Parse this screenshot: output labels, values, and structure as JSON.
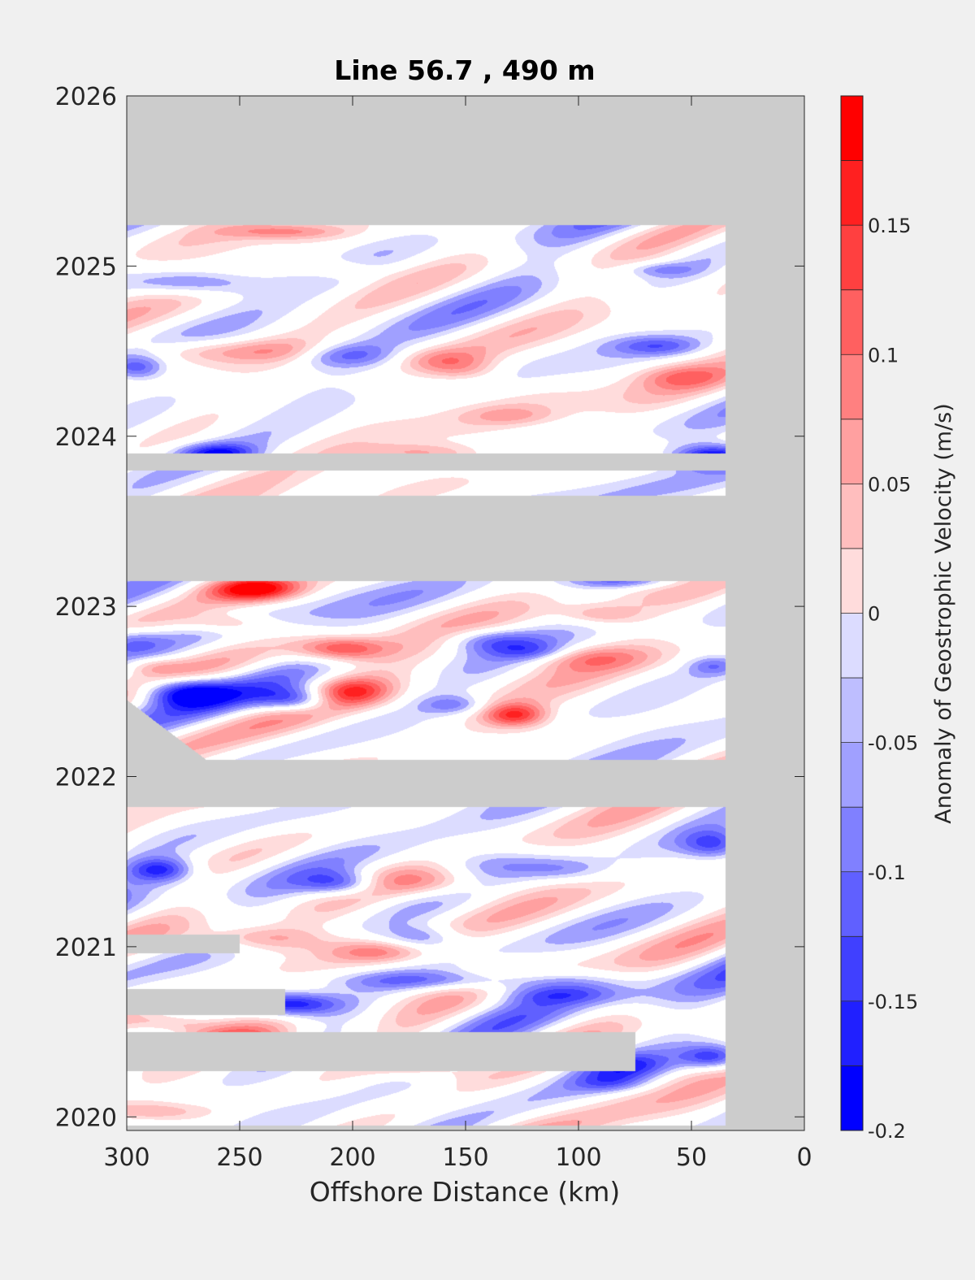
{
  "chart_data": {
    "type": "heatmap",
    "title": "Line 56.7 , 490 m",
    "xlabel": "Offshore Distance (km)",
    "ylabel": "",
    "xlim": [
      300,
      0
    ],
    "x_reversed": true,
    "ylim": [
      2019.92,
      2026
    ],
    "x_ticks": [
      "300",
      "250",
      "200",
      "150",
      "100",
      "50",
      "0"
    ],
    "x_tick_values": [
      300,
      250,
      200,
      150,
      100,
      50,
      0
    ],
    "y_ticks": [
      "2020",
      "2021",
      "2022",
      "2023",
      "2024",
      "2025",
      "2026"
    ],
    "y_tick_values": [
      2020,
      2021,
      2022,
      2023,
      2024,
      2025,
      2026
    ],
    "colorbar": {
      "label": "Anomaly of Geostrophic Velocity (m/s)",
      "ticks": [
        "-0.2",
        "-0.15",
        "-0.1",
        "-0.05",
        "0",
        "0.05",
        "0.1",
        "0.15"
      ],
      "tick_values": [
        -0.2,
        -0.15,
        -0.1,
        -0.05,
        0,
        0.05,
        0.1,
        0.15
      ],
      "range": [
        -0.2,
        0.2
      ],
      "levels": [
        -0.2,
        -0.175,
        -0.15,
        -0.125,
        -0.1,
        -0.075,
        -0.05,
        -0.025,
        0.025,
        0.05,
        0.075,
        0.1,
        0.125,
        0.15,
        0.175,
        0.2
      ],
      "colors": [
        "#0000ff",
        "#2020ff",
        "#4040ff",
        "#6060ff",
        "#8080ff",
        "#a0a0ff",
        "#bebeff",
        "#dcdcff",
        "#ffffff",
        "#ffdcdc",
        "#ffbebe",
        "#ffa0a0",
        "#ff8080",
        "#ff6060",
        "#ff4040",
        "#ff2020",
        "#ff0000"
      ]
    },
    "no_data_color": "#cccccc",
    "data_x_range": [
      35,
      300
    ],
    "data_time_ranges": [
      [
        2019.95,
        2021.82
      ],
      [
        2022.1,
        2023.15
      ],
      [
        2023.65,
        2023.8
      ],
      [
        2023.9,
        2025.24
      ]
    ],
    "gaps": [
      {
        "t0": 2020.27,
        "t1": 2020.5,
        "x_from": 300,
        "x_to": 75
      },
      {
        "t0": 2020.6,
        "t1": 2020.75,
        "x_from": 300,
        "x_to": 230
      },
      {
        "t0": 2020.96,
        "t1": 2021.07,
        "x_from": 300,
        "x_to": 250
      }
    ],
    "eddies": [
      {
        "x": 275,
        "t": 2022.5,
        "amp": -0.2,
        "sx": 14,
        "st": 0.06
      },
      {
        "x": 228,
        "t": 2020.66,
        "amp": -0.2,
        "sx": 16,
        "st": 0.05
      },
      {
        "x": 40,
        "t": 2023.88,
        "amp": -0.2,
        "sx": 12,
        "st": 0.05
      },
      {
        "x": 205,
        "t": 2022.75,
        "amp": 0.16,
        "sx": 14,
        "st": 0.05
      },
      {
        "x": 128,
        "t": 2022.36,
        "amp": 0.16,
        "sx": 10,
        "st": 0.05
      },
      {
        "x": 243,
        "t": 2023.1,
        "amp": 0.19,
        "sx": 14,
        "st": 0.05
      },
      {
        "x": 225,
        "t": 2022.45,
        "amp": -0.15,
        "sx": 12,
        "st": 0.05
      },
      {
        "x": 285,
        "t": 2021.45,
        "amp": -0.14,
        "sx": 10,
        "st": 0.05
      },
      {
        "x": 205,
        "t": 2021.37,
        "amp": -0.13,
        "sx": 12,
        "st": 0.05
      },
      {
        "x": 200,
        "t": 2022.5,
        "amp": 0.12,
        "sx": 12,
        "st": 0.06
      },
      {
        "x": 165,
        "t": 2021.37,
        "amp": 0.08,
        "sx": 18,
        "st": 0.06
      },
      {
        "x": 170,
        "t": 2020.3,
        "amp": 0.1,
        "sx": 16,
        "st": 0.05
      },
      {
        "x": 150,
        "t": 2020.8,
        "amp": -0.1,
        "sx": 40,
        "st": 0.04
      },
      {
        "x": 110,
        "t": 2020.72,
        "amp": -0.08,
        "sx": 22,
        "st": 0.04
      },
      {
        "x": 40,
        "t": 2020.35,
        "amp": -0.15,
        "sx": 10,
        "st": 0.05
      },
      {
        "x": 40,
        "t": 2021.6,
        "amp": -0.12,
        "sx": 10,
        "st": 0.06
      },
      {
        "x": 250,
        "t": 2020.45,
        "amp": 0.1,
        "sx": 20,
        "st": 0.05
      },
      {
        "x": 280,
        "t": 2020.55,
        "amp": 0.09,
        "sx": 14,
        "st": 0.04
      },
      {
        "x": 240,
        "t": 2021.05,
        "amp": 0.09,
        "sx": 20,
        "st": 0.05
      },
      {
        "x": 190,
        "t": 2020.97,
        "amp": 0.1,
        "sx": 16,
        "st": 0.05
      },
      {
        "x": 170,
        "t": 2021.05,
        "amp": -0.1,
        "sx": 12,
        "st": 0.05
      },
      {
        "x": 140,
        "t": 2020.35,
        "amp": -0.08,
        "sx": 10,
        "st": 0.05
      },
      {
        "x": 80,
        "t": 2020.3,
        "amp": -0.1,
        "sx": 14,
        "st": 0.05
      },
      {
        "x": 85,
        "t": 2020.2,
        "amp": -0.07,
        "sx": 12,
        "st": 0.04
      },
      {
        "x": 290,
        "t": 2020.03,
        "amp": 0.08,
        "sx": 18,
        "st": 0.04
      },
      {
        "x": 140,
        "t": 2021.5,
        "amp": -0.06,
        "sx": 20,
        "st": 0.06
      },
      {
        "x": 105,
        "t": 2021.45,
        "amp": -0.06,
        "sx": 14,
        "st": 0.05
      },
      {
        "x": 270,
        "t": 2024.9,
        "amp": -0.1,
        "sx": 22,
        "st": 0.05
      },
      {
        "x": 225,
        "t": 2024.5,
        "amp": 0.08,
        "sx": 20,
        "st": 0.05
      },
      {
        "x": 270,
        "t": 2024.5,
        "amp": 0.07,
        "sx": 20,
        "st": 0.05
      },
      {
        "x": 205,
        "t": 2024.48,
        "amp": -0.12,
        "sx": 16,
        "st": 0.05
      },
      {
        "x": 160,
        "t": 2024.45,
        "amp": 0.07,
        "sx": 14,
        "st": 0.05
      },
      {
        "x": 150,
        "t": 2024.38,
        "amp": 0.06,
        "sx": 12,
        "st": 0.05
      },
      {
        "x": 55,
        "t": 2024.35,
        "amp": 0.07,
        "sx": 14,
        "st": 0.05
      },
      {
        "x": 65,
        "t": 2024.53,
        "amp": -0.09,
        "sx": 14,
        "st": 0.04
      },
      {
        "x": 295,
        "t": 2024.4,
        "amp": -0.1,
        "sx": 8,
        "st": 0.05
      },
      {
        "x": 260,
        "t": 2023.9,
        "amp": -0.14,
        "sx": 12,
        "st": 0.04
      },
      {
        "x": 170,
        "t": 2023.9,
        "amp": 0.08,
        "sx": 18,
        "st": 0.04
      },
      {
        "x": 205,
        "t": 2024.98,
        "amp": 0.05,
        "sx": 12,
        "st": 0.04
      },
      {
        "x": 230,
        "t": 2025.2,
        "amp": 0.08,
        "sx": 18,
        "st": 0.03
      },
      {
        "x": 65,
        "t": 2024.98,
        "amp": -0.06,
        "sx": 12,
        "st": 0.03
      },
      {
        "x": 130,
        "t": 2024.12,
        "amp": 0.05,
        "sx": 14,
        "st": 0.04
      },
      {
        "x": 100,
        "t": 2022.7,
        "amp": 0.08,
        "sx": 20,
        "st": 0.05
      },
      {
        "x": 140,
        "t": 2022.8,
        "amp": -0.09,
        "sx": 14,
        "st": 0.05
      },
      {
        "x": 120,
        "t": 2022.73,
        "amp": -0.08,
        "sx": 12,
        "st": 0.04
      },
      {
        "x": 255,
        "t": 2022.9,
        "amp": 0.08,
        "sx": 14,
        "st": 0.04
      },
      {
        "x": 155,
        "t": 2022.42,
        "amp": -0.08,
        "sx": 10,
        "st": 0.04
      },
      {
        "x": 90,
        "t": 2022.95,
        "amp": 0.07,
        "sx": 12,
        "st": 0.04
      },
      {
        "x": 300,
        "t": 2022.8,
        "amp": -0.08,
        "sx": 10,
        "st": 0.05
      },
      {
        "x": 290,
        "t": 2022.65,
        "amp": 0.07,
        "sx": 10,
        "st": 0.04
      },
      {
        "x": 40,
        "t": 2022.65,
        "amp": -0.08,
        "sx": 8,
        "st": 0.04
      },
      {
        "x": 80,
        "t": 2023.15,
        "amp": -0.08,
        "sx": 18,
        "st": 0.03
      }
    ]
  }
}
